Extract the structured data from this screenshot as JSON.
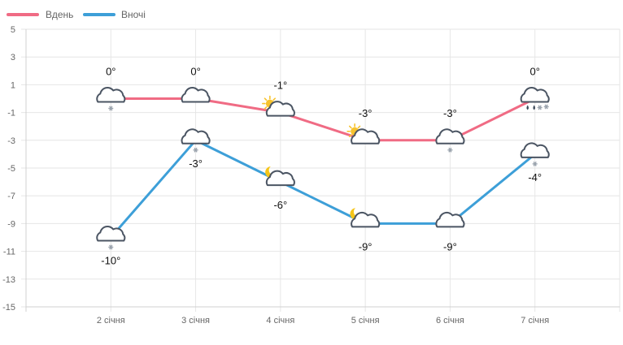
{
  "chart_data": {
    "type": "line",
    "categories": [
      "2 січня",
      "3 січня",
      "4 січня",
      "5 січня",
      "6 січня",
      "7 січня"
    ],
    "series": [
      {
        "name": "Вдень",
        "color": "#f06b84",
        "values": [
          0,
          0,
          -1,
          -3,
          -3,
          0
        ],
        "labels": [
          "0°",
          "0°",
          "-1°",
          "-3°",
          "-3°",
          "0°"
        ],
        "icons": [
          "cloud-snow-icon",
          "cloud-icon",
          "sun-cloud-icon",
          "sun-cloud-icon",
          "cloud-snow-icon",
          "cloud-rain-snow-icon"
        ]
      },
      {
        "name": "Вночі",
        "color": "#3d9fd8",
        "values": [
          -10,
          -3,
          -6,
          -9,
          -9,
          -4
        ],
        "labels": [
          "-10°",
          "-3°",
          "-6°",
          "-9°",
          "-9°",
          "-4°"
        ],
        "icons": [
          "cloud-snow-icon",
          "cloud-snow-icon",
          "moon-cloud-icon",
          "moon-cloud-icon",
          "cloud-icon",
          "cloud-snow-icon"
        ]
      }
    ],
    "yticks": [
      "5",
      "3",
      "1",
      "-1",
      "-3",
      "-5",
      "-7",
      "-9",
      "-11",
      "-13",
      "-15"
    ],
    "ylim": [
      -15,
      5
    ],
    "grid": true,
    "legend_position": "top-left"
  }
}
